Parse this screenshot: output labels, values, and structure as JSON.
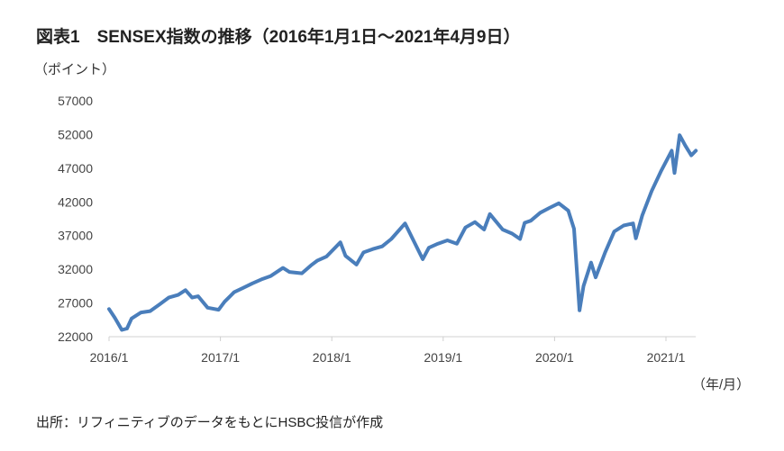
{
  "chart_data": {
    "type": "line",
    "title": "図表1　SENSEX指数の推移（2016年1月1日～2021年4月9日）",
    "ylabel": "（ポイント）",
    "xlabel": "（年/月）",
    "source": "出所：リフィニティブのデータをもとにHSBC投信が作成",
    "ylim": [
      22000,
      57000
    ],
    "yticks": [
      22000,
      27000,
      32000,
      37000,
      42000,
      47000,
      52000,
      57000
    ],
    "xticks": [
      "2016/1",
      "2017/1",
      "2018/1",
      "2019/1",
      "2020/1",
      "2021/1"
    ],
    "xlim": [
      "2016-01-01",
      "2021-04-09"
    ],
    "grid": false,
    "line_color": "#4a7ebb",
    "series": [
      {
        "x": [
          "2016-01-01",
          "2016-01-20",
          "2016-02-12",
          "2016-02-29",
          "2016-03-15",
          "2016-04-15",
          "2016-05-15",
          "2016-06-15",
          "2016-07-15",
          "2016-08-15",
          "2016-09-08",
          "2016-09-30",
          "2016-10-20",
          "2016-11-20",
          "2016-12-26",
          "2017-01-15",
          "2017-02-15",
          "2017-03-15",
          "2017-04-15",
          "2017-05-15",
          "2017-06-15",
          "2017-07-25",
          "2017-08-15",
          "2017-09-25",
          "2017-10-25",
          "2017-11-15",
          "2017-12-15",
          "2018-01-29",
          "2018-02-15",
          "2018-03-23",
          "2018-04-15",
          "2018-05-15",
          "2018-06-15",
          "2018-07-15",
          "2018-08-29",
          "2018-09-20",
          "2018-10-26",
          "2018-11-15",
          "2018-12-15",
          "2019-01-15",
          "2019-02-15",
          "2019-03-15",
          "2019-04-15",
          "2019-05-15",
          "2019-06-03",
          "2019-07-15",
          "2019-08-15",
          "2019-09-10",
          "2019-09-25",
          "2019-10-15",
          "2019-11-15",
          "2019-12-15",
          "2020-01-15",
          "2020-02-15",
          "2020-03-05",
          "2020-03-23",
          "2020-04-05",
          "2020-04-30",
          "2020-05-15",
          "2020-06-15",
          "2020-07-15",
          "2020-08-15",
          "2020-09-15",
          "2020-09-24",
          "2020-10-15",
          "2020-11-15",
          "2020-12-15",
          "2021-01-20",
          "2021-01-29",
          "2021-02-15",
          "2021-03-05",
          "2021-03-25",
          "2021-04-09"
        ],
        "values": [
          26100,
          24800,
          23000,
          23200,
          24700,
          25600,
          25800,
          26800,
          27800,
          28200,
          28900,
          27800,
          28000,
          26300,
          26000,
          27200,
          28600,
          29200,
          29900,
          30500,
          31000,
          32200,
          31600,
          31400,
          32600,
          33300,
          33900,
          36000,
          34000,
          32700,
          34500,
          35000,
          35400,
          36500,
          38800,
          36800,
          33500,
          35200,
          35800,
          36300,
          35800,
          38200,
          39000,
          37900,
          40200,
          37900,
          37300,
          36500,
          38900,
          39200,
          40400,
          41100,
          41800,
          40700,
          38000,
          25900,
          29500,
          33000,
          30800,
          34500,
          37600,
          38500,
          38800,
          36600,
          40000,
          43600,
          46500,
          49600,
          46300,
          51900,
          50400,
          48900,
          49600
        ]
      }
    ]
  }
}
